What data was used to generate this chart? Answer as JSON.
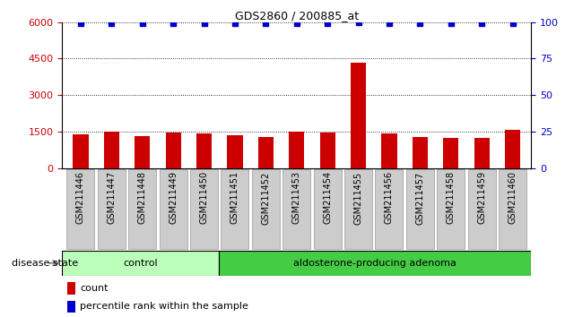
{
  "title": "GDS2860 / 200885_at",
  "samples": [
    "GSM211446",
    "GSM211447",
    "GSM211448",
    "GSM211449",
    "GSM211450",
    "GSM211451",
    "GSM211452",
    "GSM211453",
    "GSM211454",
    "GSM211455",
    "GSM211456",
    "GSM211457",
    "GSM211458",
    "GSM211459",
    "GSM211460"
  ],
  "counts": [
    1380,
    1510,
    1330,
    1460,
    1430,
    1350,
    1290,
    1490,
    1470,
    4350,
    1410,
    1260,
    1230,
    1250,
    1560
  ],
  "percentiles": [
    99,
    99,
    99,
    99,
    99,
    99,
    99,
    99,
    99,
    100,
    99,
    99,
    99,
    99,
    99
  ],
  "control_count": 5,
  "adenoma_count": 10,
  "control_label": "control",
  "adenoma_label": "aldosterone-producing adenoma",
  "disease_state_label": "disease state",
  "legend_count": "count",
  "legend_percentile": "percentile rank within the sample",
  "bar_color": "#cc0000",
  "dot_color": "#0000cc",
  "control_bg": "#bbffbb",
  "adenoma_bg": "#44cc44",
  "tick_bg": "#cccccc",
  "ylim_left": [
    0,
    6000
  ],
  "ylim_right": [
    0,
    100
  ],
  "yticks_left": [
    0,
    1500,
    3000,
    4500,
    6000
  ],
  "yticks_right": [
    0,
    25,
    50,
    75,
    100
  ],
  "dotted_lines": [
    1500,
    3000,
    4500,
    6000
  ],
  "bar_width": 0.5,
  "fig_width": 6.3,
  "fig_height": 3.54,
  "dpi": 100
}
